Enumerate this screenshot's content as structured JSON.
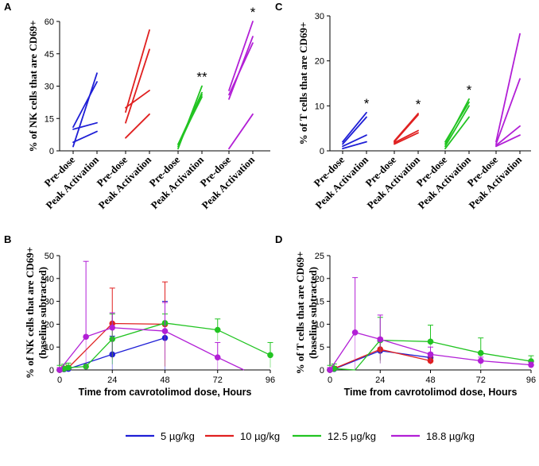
{
  "chart_data": [
    {
      "panel": "A",
      "type": "line",
      "ylabel": "% of NK cells that are CD69+",
      "ylim": [
        0,
        60
      ],
      "yticks": [
        0,
        15,
        30,
        45,
        60
      ],
      "categories": [
        "Pre-dose",
        "Peak Activation"
      ],
      "groups": [
        {
          "name": "5 µg/kg",
          "color": "#1f1fd6",
          "lines": [
            [
              2,
              36
            ],
            [
              10,
              13
            ],
            [
              11,
              32
            ],
            [
              4,
              9
            ]
          ],
          "significance": ""
        },
        {
          "name": "10 µg/kg",
          "color": "#e02020",
          "lines": [
            [
              6,
              17
            ],
            [
              13,
              47
            ],
            [
              18,
              56
            ],
            [
              20,
              28
            ]
          ],
          "significance": ""
        },
        {
          "name": "12.5 µg/kg",
          "color": "#22c422",
          "lines": [
            [
              1,
              30
            ],
            [
              2,
              26
            ],
            [
              3,
              25
            ],
            [
              3,
              27
            ]
          ],
          "significance": "**"
        },
        {
          "name": "18.8 µg/kg",
          "color": "#b21fd6",
          "lines": [
            [
              1,
              17
            ],
            [
              24,
              53
            ],
            [
              26,
              50
            ],
            [
              28,
              60
            ]
          ],
          "significance": "*"
        }
      ]
    },
    {
      "panel": "C",
      "type": "line",
      "ylabel": "% of T cells that are CD69+",
      "ylim": [
        0,
        30
      ],
      "yticks": [
        0,
        10,
        20,
        30
      ],
      "categories": [
        "Pre-dose",
        "Peak Activation"
      ],
      "groups": [
        {
          "name": "5 µg/kg",
          "color": "#1f1fd6",
          "lines": [
            [
              0.5,
              2
            ],
            [
              1,
              3.5
            ],
            [
              1.5,
              7.5
            ],
            [
              2,
              8.5
            ]
          ],
          "significance": "*"
        },
        {
          "name": "10 µg/kg",
          "color": "#e02020",
          "lines": [
            [
              1.5,
              4
            ],
            [
              1.8,
              4.5
            ],
            [
              2,
              8
            ],
            [
              2.2,
              8.3
            ]
          ],
          "significance": "*"
        },
        {
          "name": "12.5 µg/kg",
          "color": "#22c422",
          "lines": [
            [
              0.5,
              7.5
            ],
            [
              1,
              10
            ],
            [
              1.5,
              11.5
            ],
            [
              2,
              10.8
            ]
          ],
          "significance": "*"
        },
        {
          "name": "18.8 µg/kg",
          "color": "#b21fd6",
          "lines": [
            [
              1,
              3.5
            ],
            [
              1.2,
              5.5
            ],
            [
              1.5,
              16
            ],
            [
              2,
              26
            ]
          ],
          "significance": ""
        }
      ]
    },
    {
      "panel": "B",
      "type": "line",
      "ylabel": "% of NK cells that are CD69+",
      "ylabel2": "(baseline subtracted)",
      "xlabel": "Time from cavrotolimod dose,  Hours",
      "xlim": [
        0,
        96
      ],
      "xticks": [
        0,
        24,
        48,
        72,
        96
      ],
      "ylim": [
        0,
        50
      ],
      "yticks": [
        0,
        10,
        20,
        30,
        40,
        50
      ],
      "series": [
        {
          "name": "5 µg/kg",
          "color": "#1f1fd6",
          "points": [
            [
              0,
              0,
              1
            ],
            [
              2,
              0.3,
              1
            ],
            [
              4,
              0.5,
              1
            ],
            [
              24,
              6.8,
              8
            ],
            [
              48,
              14,
              16
            ]
          ]
        },
        {
          "name": "10 µg/kg",
          "color": "#e02020",
          "points": [
            [
              0,
              0,
              1
            ],
            [
              2,
              0.5,
              1
            ],
            [
              4,
              1,
              1
            ],
            [
              24,
              20.3,
              15.5
            ],
            [
              48,
              20,
              18.5
            ]
          ]
        },
        {
          "name": "12.5 µg/kg",
          "color": "#22c422",
          "points": [
            [
              0,
              0,
              2
            ],
            [
              2,
              0.5,
              2
            ],
            [
              4,
              1,
              2
            ],
            [
              12,
              1.5,
              0
            ],
            [
              24,
              13.5,
              11
            ],
            [
              48,
              20.5,
              4
            ],
            [
              72,
              17.5,
              4.8
            ],
            [
              96,
              6.5,
              5.5
            ]
          ]
        },
        {
          "name": "18.8 µg/kg",
          "color": "#b21fd6",
          "points": [
            [
              0,
              0,
              1
            ],
            [
              12,
              14.5,
              33
            ],
            [
              24,
              18.5,
              6.5
            ],
            [
              48,
              17,
              12.5
            ],
            [
              72,
              5.5,
              6.5
            ],
            [
              84,
              0,
              0
            ]
          ]
        }
      ]
    },
    {
      "panel": "D",
      "type": "line",
      "ylabel": "% of T cells that are CD69+",
      "ylabel2": "(baseline subtracted)",
      "xlabel": "Time from cavrotolimod dose,  Hours",
      "xlim": [
        0,
        96
      ],
      "xticks": [
        0,
        24,
        48,
        72,
        96
      ],
      "ylim": [
        0,
        25
      ],
      "yticks": [
        0,
        5,
        10,
        15,
        20,
        25
      ],
      "series": [
        {
          "name": "5 µg/kg",
          "color": "#1f1fd6",
          "points": [
            [
              0,
              0,
              0.5
            ],
            [
              2,
              0.2,
              0.5
            ],
            [
              24,
              4.2,
              2
            ],
            [
              48,
              2.7,
              1
            ]
          ]
        },
        {
          "name": "10 µg/kg",
          "color": "#e02020",
          "points": [
            [
              0,
              0,
              0.5
            ],
            [
              2,
              0.3,
              0.5
            ],
            [
              24,
              4.5,
              2.5
            ],
            [
              48,
              2,
              0.8
            ]
          ]
        },
        {
          "name": "12.5 µg/kg",
          "color": "#22c422",
          "points": [
            [
              0,
              0,
              1
            ],
            [
              2,
              0.3,
              1
            ],
            [
              12,
              0,
              0
            ],
            [
              24,
              6.5,
              5
            ],
            [
              48,
              6.2,
              3.6
            ],
            [
              72,
              3.7,
              3.3
            ],
            [
              96,
              1.9,
              1.2
            ]
          ]
        },
        {
          "name": "18.8 µg/kg",
          "color": "#b21fd6",
          "points": [
            [
              0,
              0,
              0.5
            ],
            [
              12,
              8.2,
              12
            ],
            [
              24,
              6.7,
              5.3
            ],
            [
              48,
              3.4,
              1.6
            ],
            [
              72,
              2,
              0.8
            ],
            [
              96,
              1.1,
              0.6
            ]
          ]
        }
      ]
    }
  ],
  "legend": [
    {
      "label": "5 µg/kg",
      "color": "#1f1fd6"
    },
    {
      "label": "10 µg/kg",
      "color": "#e02020"
    },
    {
      "label": "12.5 µg/kg",
      "color": "#22c422"
    },
    {
      "label": "18.8 µg/kg",
      "color": "#b21fd6"
    }
  ]
}
